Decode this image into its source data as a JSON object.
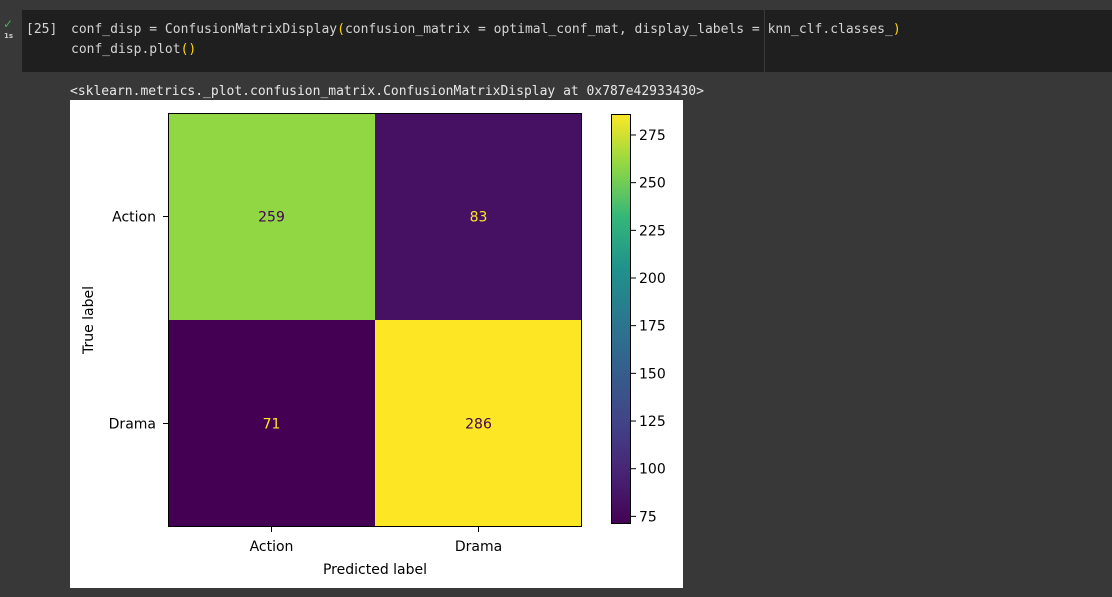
{
  "cell": {
    "prompt": "[25]",
    "exec_time": "1s",
    "status_icon": "check-icon",
    "code_line1_a": "conf_disp = ConfusionMatrixDisplay",
    "code_line1_open": "(",
    "code_line1_b": "confusion_matrix = optimal_conf_mat, display_labels = knn_clf.classes_",
    "code_line1_close": ")",
    "code_line2_a": "conf_disp.plot",
    "code_line2_parens": "()"
  },
  "output": {
    "repr": "<sklearn.metrics._plot.confusion_matrix.ConfusionMatrixDisplay at 0x787e42933430>"
  },
  "chart_data": {
    "type": "heatmap",
    "colormap": "viridis",
    "xlabel": "Predicted label",
    "ylabel": "True label",
    "x_categories": [
      "Action",
      "Drama"
    ],
    "y_categories": [
      "Action",
      "Drama"
    ],
    "values": [
      [
        259,
        83
      ],
      [
        71,
        286
      ]
    ],
    "colorbar": {
      "range": [
        71,
        286
      ],
      "ticks": [
        75,
        100,
        125,
        150,
        175,
        200,
        225,
        250,
        275
      ]
    },
    "colors": {
      "low_text": "#fde725",
      "high_text": "#440154"
    }
  }
}
